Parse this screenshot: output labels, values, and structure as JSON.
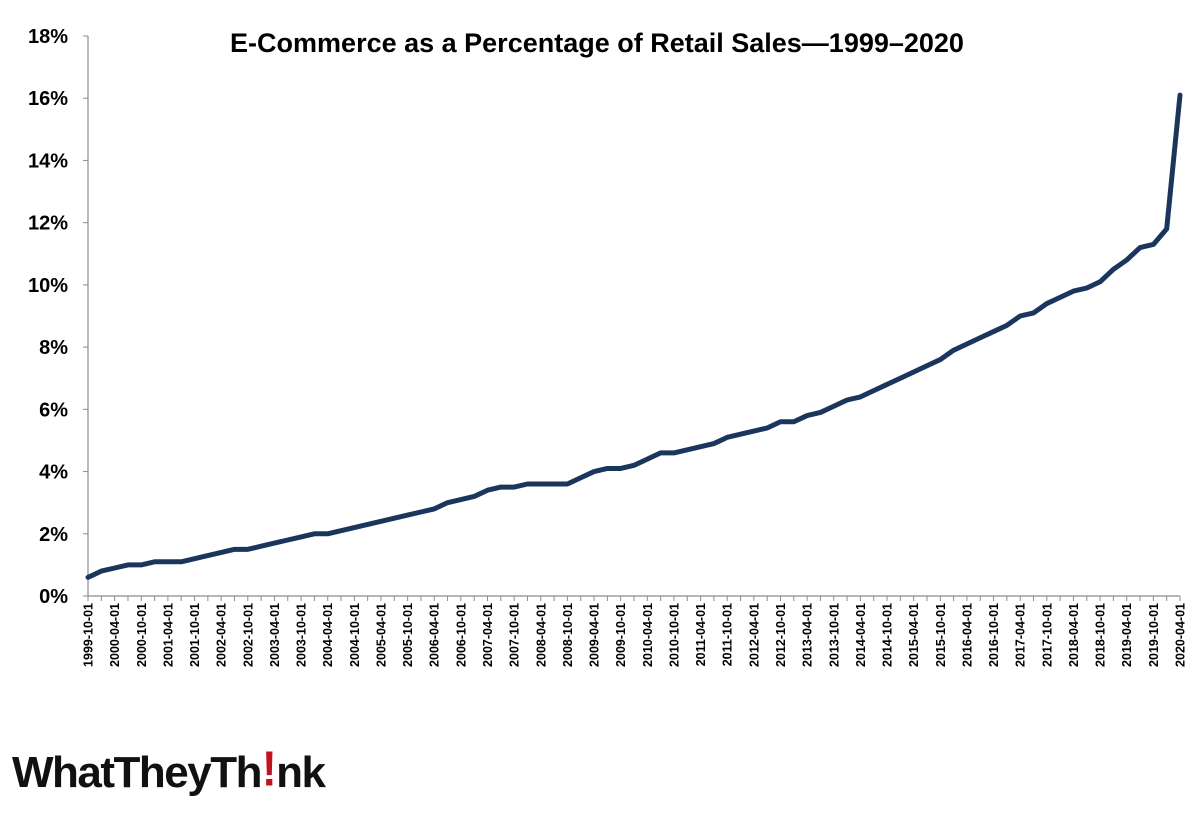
{
  "chart_data": {
    "type": "line",
    "title": "E-Commerce as a Percentage of Retail Sales—1999–2020",
    "xlabel": "",
    "ylabel": "",
    "ylim": [
      0,
      18
    ],
    "y_ticks": [
      0,
      2,
      4,
      6,
      8,
      10,
      12,
      14,
      16,
      18
    ],
    "y_tick_format": "%",
    "grid": false,
    "legend": "none",
    "line_color": "#1b365d",
    "x": [
      "1999-10-01",
      "2000-01-01",
      "2000-04-01",
      "2000-07-01",
      "2000-10-01",
      "2001-01-01",
      "2001-04-01",
      "2001-07-01",
      "2001-10-01",
      "2002-01-01",
      "2002-04-01",
      "2002-07-01",
      "2002-10-01",
      "2003-01-01",
      "2003-04-01",
      "2003-07-01",
      "2003-10-01",
      "2004-01-01",
      "2004-04-01",
      "2004-07-01",
      "2004-10-01",
      "2005-01-01",
      "2005-04-01",
      "2005-07-01",
      "2005-10-01",
      "2006-01-01",
      "2006-04-01",
      "2006-07-01",
      "2006-10-01",
      "2007-01-01",
      "2007-04-01",
      "2007-07-01",
      "2007-10-01",
      "2008-01-01",
      "2008-04-01",
      "2008-07-01",
      "2008-10-01",
      "2009-01-01",
      "2009-04-01",
      "2009-07-01",
      "2009-10-01",
      "2010-01-01",
      "2010-04-01",
      "2010-07-01",
      "2010-10-01",
      "2011-01-01",
      "2011-04-01",
      "2011-07-01",
      "2011-10-01",
      "2012-01-01",
      "2012-04-01",
      "2012-07-01",
      "2012-10-01",
      "2013-01-01",
      "2013-04-01",
      "2013-07-01",
      "2013-10-01",
      "2014-01-01",
      "2014-04-01",
      "2014-07-01",
      "2014-10-01",
      "2015-01-01",
      "2015-04-01",
      "2015-07-01",
      "2015-10-01",
      "2016-01-01",
      "2016-04-01",
      "2016-07-01",
      "2016-10-01",
      "2017-01-01",
      "2017-04-01",
      "2017-07-01",
      "2017-10-01",
      "2018-01-01",
      "2018-04-01",
      "2018-07-01",
      "2018-10-01",
      "2019-01-01",
      "2019-04-01",
      "2019-07-01",
      "2019-10-01",
      "2020-01-01",
      "2020-04-01"
    ],
    "x_tick_labels": [
      "1999-10-01",
      "2000-04-01",
      "2000-10-01",
      "2001-04-01",
      "2001-10-01",
      "2002-04-01",
      "2002-10-01",
      "2003-04-01",
      "2003-10-01",
      "2004-04-01",
      "2004-10-01",
      "2005-04-01",
      "2005-10-01",
      "2006-04-01",
      "2006-10-01",
      "2007-04-01",
      "2007-10-01",
      "2008-04-01",
      "2008-10-01",
      "2009-04-01",
      "2009-10-01",
      "2010-04-01",
      "2010-10-01",
      "2011-04-01",
      "2011-10-01",
      "2012-04-01",
      "2012-10-01",
      "2013-04-01",
      "2013-10-01",
      "2014-04-01",
      "2014-10-01",
      "2015-04-01",
      "2015-10-01",
      "2016-04-01",
      "2016-10-01",
      "2017-04-01",
      "2017-10-01",
      "2018-04-01",
      "2018-10-01",
      "2019-04-01",
      "2019-10-01",
      "2020-04-01"
    ],
    "series": [
      {
        "values": [
          0.6,
          0.8,
          0.9,
          1.0,
          1.0,
          1.1,
          1.1,
          1.1,
          1.2,
          1.3,
          1.4,
          1.5,
          1.5,
          1.6,
          1.7,
          1.8,
          1.9,
          2.0,
          2.0,
          2.1,
          2.2,
          2.3,
          2.4,
          2.5,
          2.6,
          2.7,
          2.8,
          3.0,
          3.1,
          3.2,
          3.4,
          3.5,
          3.5,
          3.6,
          3.6,
          3.6,
          3.6,
          3.8,
          4.0,
          4.1,
          4.1,
          4.2,
          4.4,
          4.6,
          4.6,
          4.7,
          4.8,
          4.9,
          5.1,
          5.2,
          5.3,
          5.4,
          5.6,
          5.6,
          5.8,
          5.9,
          6.1,
          6.3,
          6.4,
          6.6,
          6.8,
          7.0,
          7.2,
          7.4,
          7.6,
          7.9,
          8.1,
          8.3,
          8.5,
          8.7,
          9.0,
          9.1,
          9.4,
          9.6,
          9.8,
          9.9,
          10.1,
          10.5,
          10.8,
          11.2,
          11.3,
          11.8,
          16.1
        ]
      }
    ]
  },
  "logo": {
    "text_a": "WhatTheyTh",
    "excl": "!",
    "text_b": "nk"
  }
}
